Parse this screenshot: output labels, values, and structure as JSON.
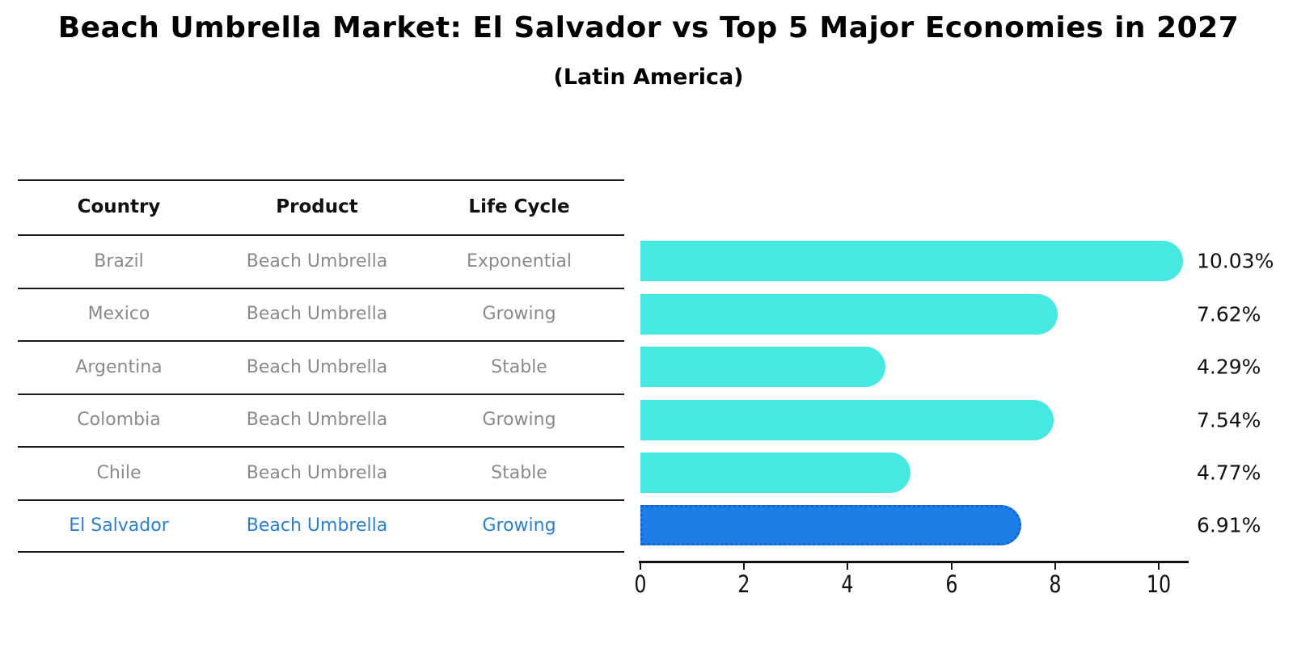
{
  "title": "Beach Umbrella Market: El Salvador vs Top 5 Major Economies in 2027",
  "subtitle": "(Latin America)",
  "table": {
    "headers": [
      "Country",
      "Product",
      "Life Cycle"
    ],
    "rows": [
      {
        "country": "Brazil",
        "product": "Beach Umbrella",
        "life_cycle": "Exponential",
        "highlight": false
      },
      {
        "country": "Mexico",
        "product": "Beach Umbrella",
        "life_cycle": "Growing",
        "highlight": false
      },
      {
        "country": "Argentina",
        "product": "Beach Umbrella",
        "life_cycle": "Stable",
        "highlight": false
      },
      {
        "country": "Colombia",
        "product": "Beach Umbrella",
        "life_cycle": "Growing",
        "highlight": false
      },
      {
        "country": "Chile",
        "product": "Beach Umbrella",
        "life_cycle": "Stable",
        "highlight": false
      },
      {
        "country": "El Salvador",
        "product": "Beach Umbrella",
        "life_cycle": "Growing",
        "highlight": true
      }
    ]
  },
  "chart_data": {
    "type": "bar",
    "orientation": "horizontal",
    "title": "Beach Umbrella Market: El Salvador vs Top 5 Major Economies in 2027 (Latin America)",
    "categories": [
      "Brazil",
      "Mexico",
      "Argentina",
      "Colombia",
      "Chile",
      "El Salvador"
    ],
    "values": [
      10.03,
      7.62,
      4.29,
      7.54,
      4.77,
      6.91
    ],
    "labels": [
      "10.03%",
      "7.62%",
      "4.29%",
      "7.54%",
      "4.77%",
      "6.91%"
    ],
    "xlabel": "",
    "ylabel": "",
    "xlim": [
      0,
      10.5
    ],
    "xticks": [
      0,
      2,
      4,
      6,
      8,
      10
    ],
    "grid": false,
    "legend": false,
    "bar_color": "#46e8e2",
    "highlight_color": "#1c7fe8",
    "highlight_border_color": "#1565cd",
    "highlight_index": 5
  },
  "colors": {
    "bar_cyan": "#46e8e2",
    "bar_blue": "#1c7fe8",
    "highlight_text_blue": "#2a80cf",
    "row_text_gray": "#8a8a8a",
    "line_black": "#1a1a1a"
  }
}
